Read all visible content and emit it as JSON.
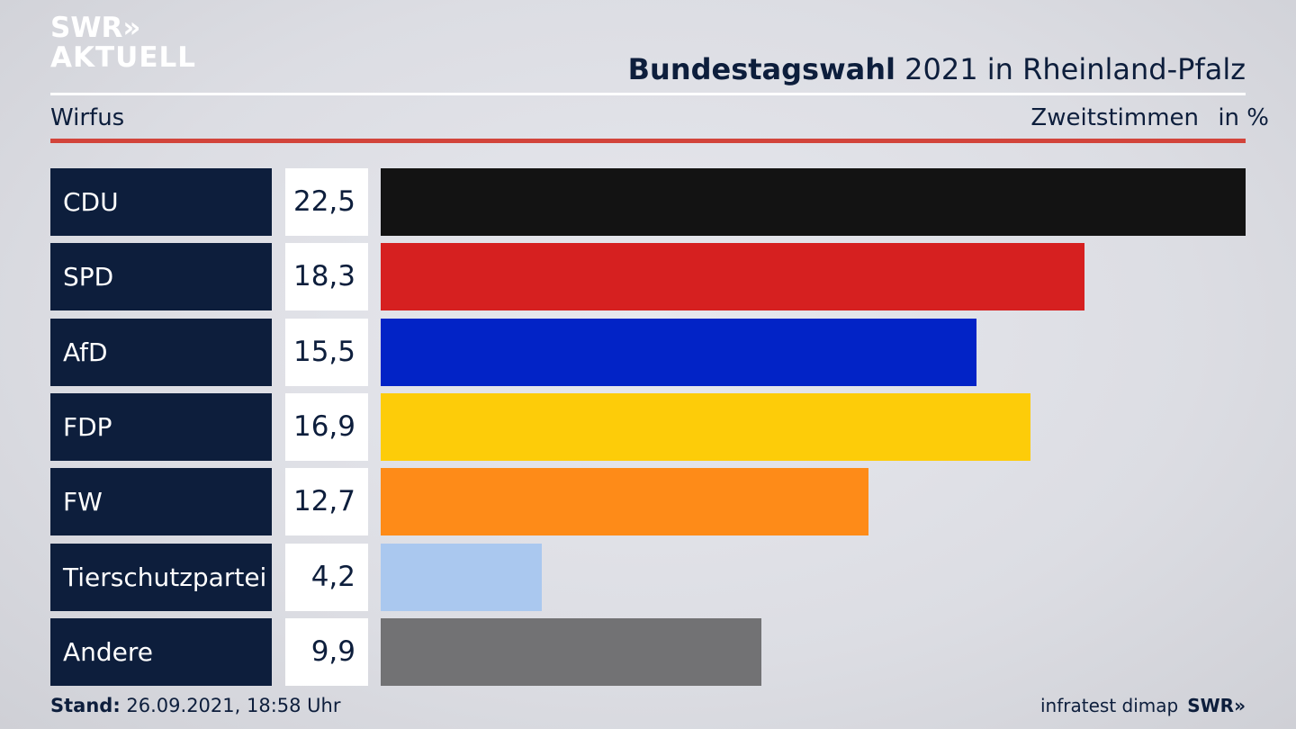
{
  "brand": {
    "line1": "SWR»",
    "line2": "AKTUELL"
  },
  "header": {
    "title_bold": "Bundestagswahl",
    "title_rest": " 2021 in Rheinland-Pfalz"
  },
  "subtitle": "Wirfus",
  "measure_label": "Zweitstimmen",
  "unit_label": "in %",
  "footer": {
    "stand_label": "Stand:",
    "stand_value": " 26.09.2021, 18:58 Uhr",
    "source": "infratest dimap",
    "source_brand": "SWR»"
  },
  "chart_data": {
    "type": "bar",
    "orientation": "horizontal",
    "title": "Bundestagswahl 2021 in Rheinland-Pfalz",
    "subtitle": "Wirfus",
    "categories": [
      "CDU",
      "SPD",
      "AfD",
      "FDP",
      "FW",
      "Tierschutzpartei",
      "Andere"
    ],
    "values": [
      22.5,
      18.3,
      15.5,
      16.9,
      12.7,
      4.2,
      9.9
    ],
    "value_labels": [
      "22,5",
      "18,3",
      "15,5",
      "16,9",
      "12,7",
      "4,2",
      "9,9"
    ],
    "colors": [
      "#131313",
      "#d62020",
      "#0223c6",
      "#fdcc09",
      "#fe8b18",
      "#aac8ef",
      "#727274"
    ],
    "xlim": [
      0,
      22.5
    ]
  }
}
